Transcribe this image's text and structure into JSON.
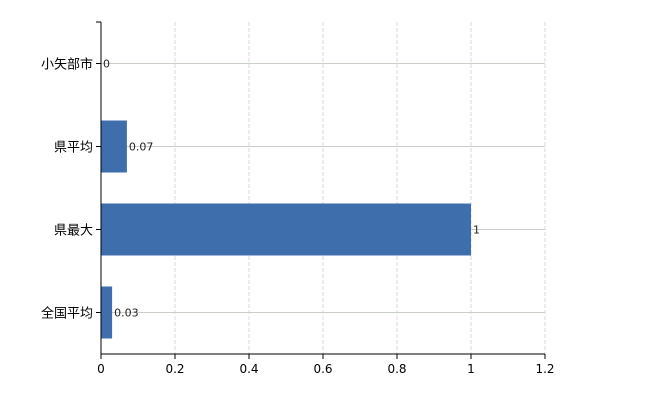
{
  "chart_data": {
    "type": "bar",
    "orientation": "horizontal",
    "categories": [
      "小矢部市",
      "県平均",
      "県最大",
      "全国平均"
    ],
    "values": [
      0,
      0.07,
      1,
      0.03
    ],
    "data_labels": [
      "0",
      "0.07",
      "1",
      "0.03"
    ],
    "title": "",
    "xlabel": "",
    "ylabel": "",
    "xlim": [
      0,
      1.2
    ],
    "xticks": [
      0,
      0.2,
      0.4,
      0.6,
      0.8,
      1,
      1.2
    ],
    "xtick_labels": [
      "0",
      "0.2",
      "0.4",
      "0.6",
      "0.8",
      "1",
      "1.2"
    ],
    "grid": true,
    "colors": {
      "bar": "#3f6eac",
      "grid_v": "#d8d8d8",
      "grid_h": "#c8d0c8",
      "axis": "#000000",
      "label": "#222222"
    }
  }
}
